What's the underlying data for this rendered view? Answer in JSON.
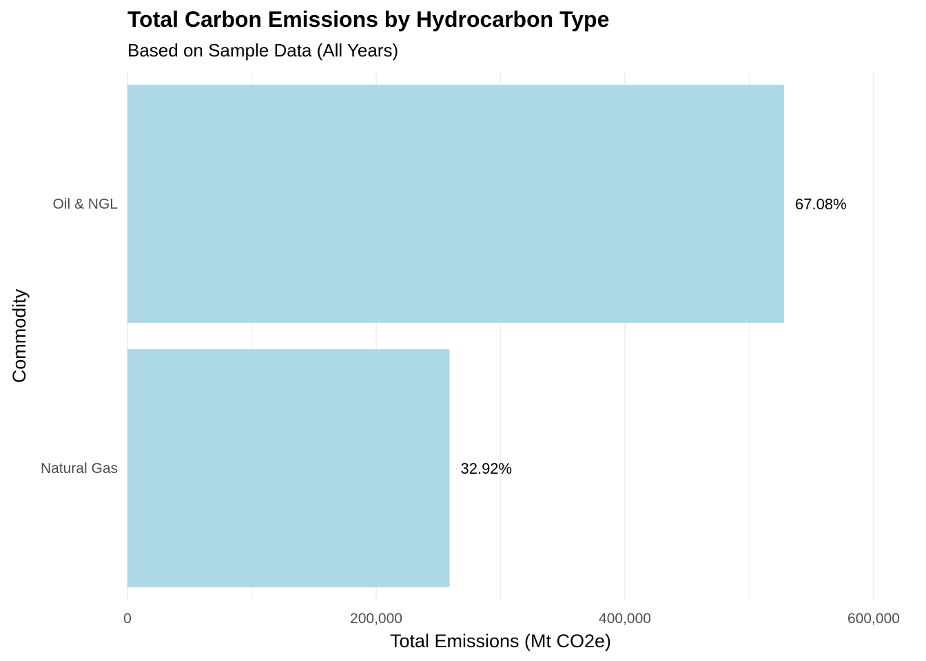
{
  "chart_data": {
    "type": "bar",
    "orientation": "horizontal",
    "title": "Total Carbon Emissions by Hydrocarbon Type",
    "subtitle": "Based on Sample Data (All Years)",
    "xlabel": "Total Emissions (Mt CO2e)",
    "ylabel": "Commodity",
    "categories": [
      "Oil & NGL",
      "Natural Gas"
    ],
    "values": [
      528000,
      259000
    ],
    "data_labels": [
      "67.08%",
      "32.92%"
    ],
    "xlim": [
      0,
      600000
    ],
    "x_ticks": [
      0,
      200000,
      400000,
      600000
    ],
    "x_tick_labels": [
      "0",
      "200,000",
      "400,000",
      "600,000"
    ],
    "grid": true,
    "legend": "none",
    "colors": {
      "bar": "#add8e6",
      "grid": "#ebebeb",
      "tick_text": "#4d4d4d",
      "text": "#000000"
    }
  }
}
